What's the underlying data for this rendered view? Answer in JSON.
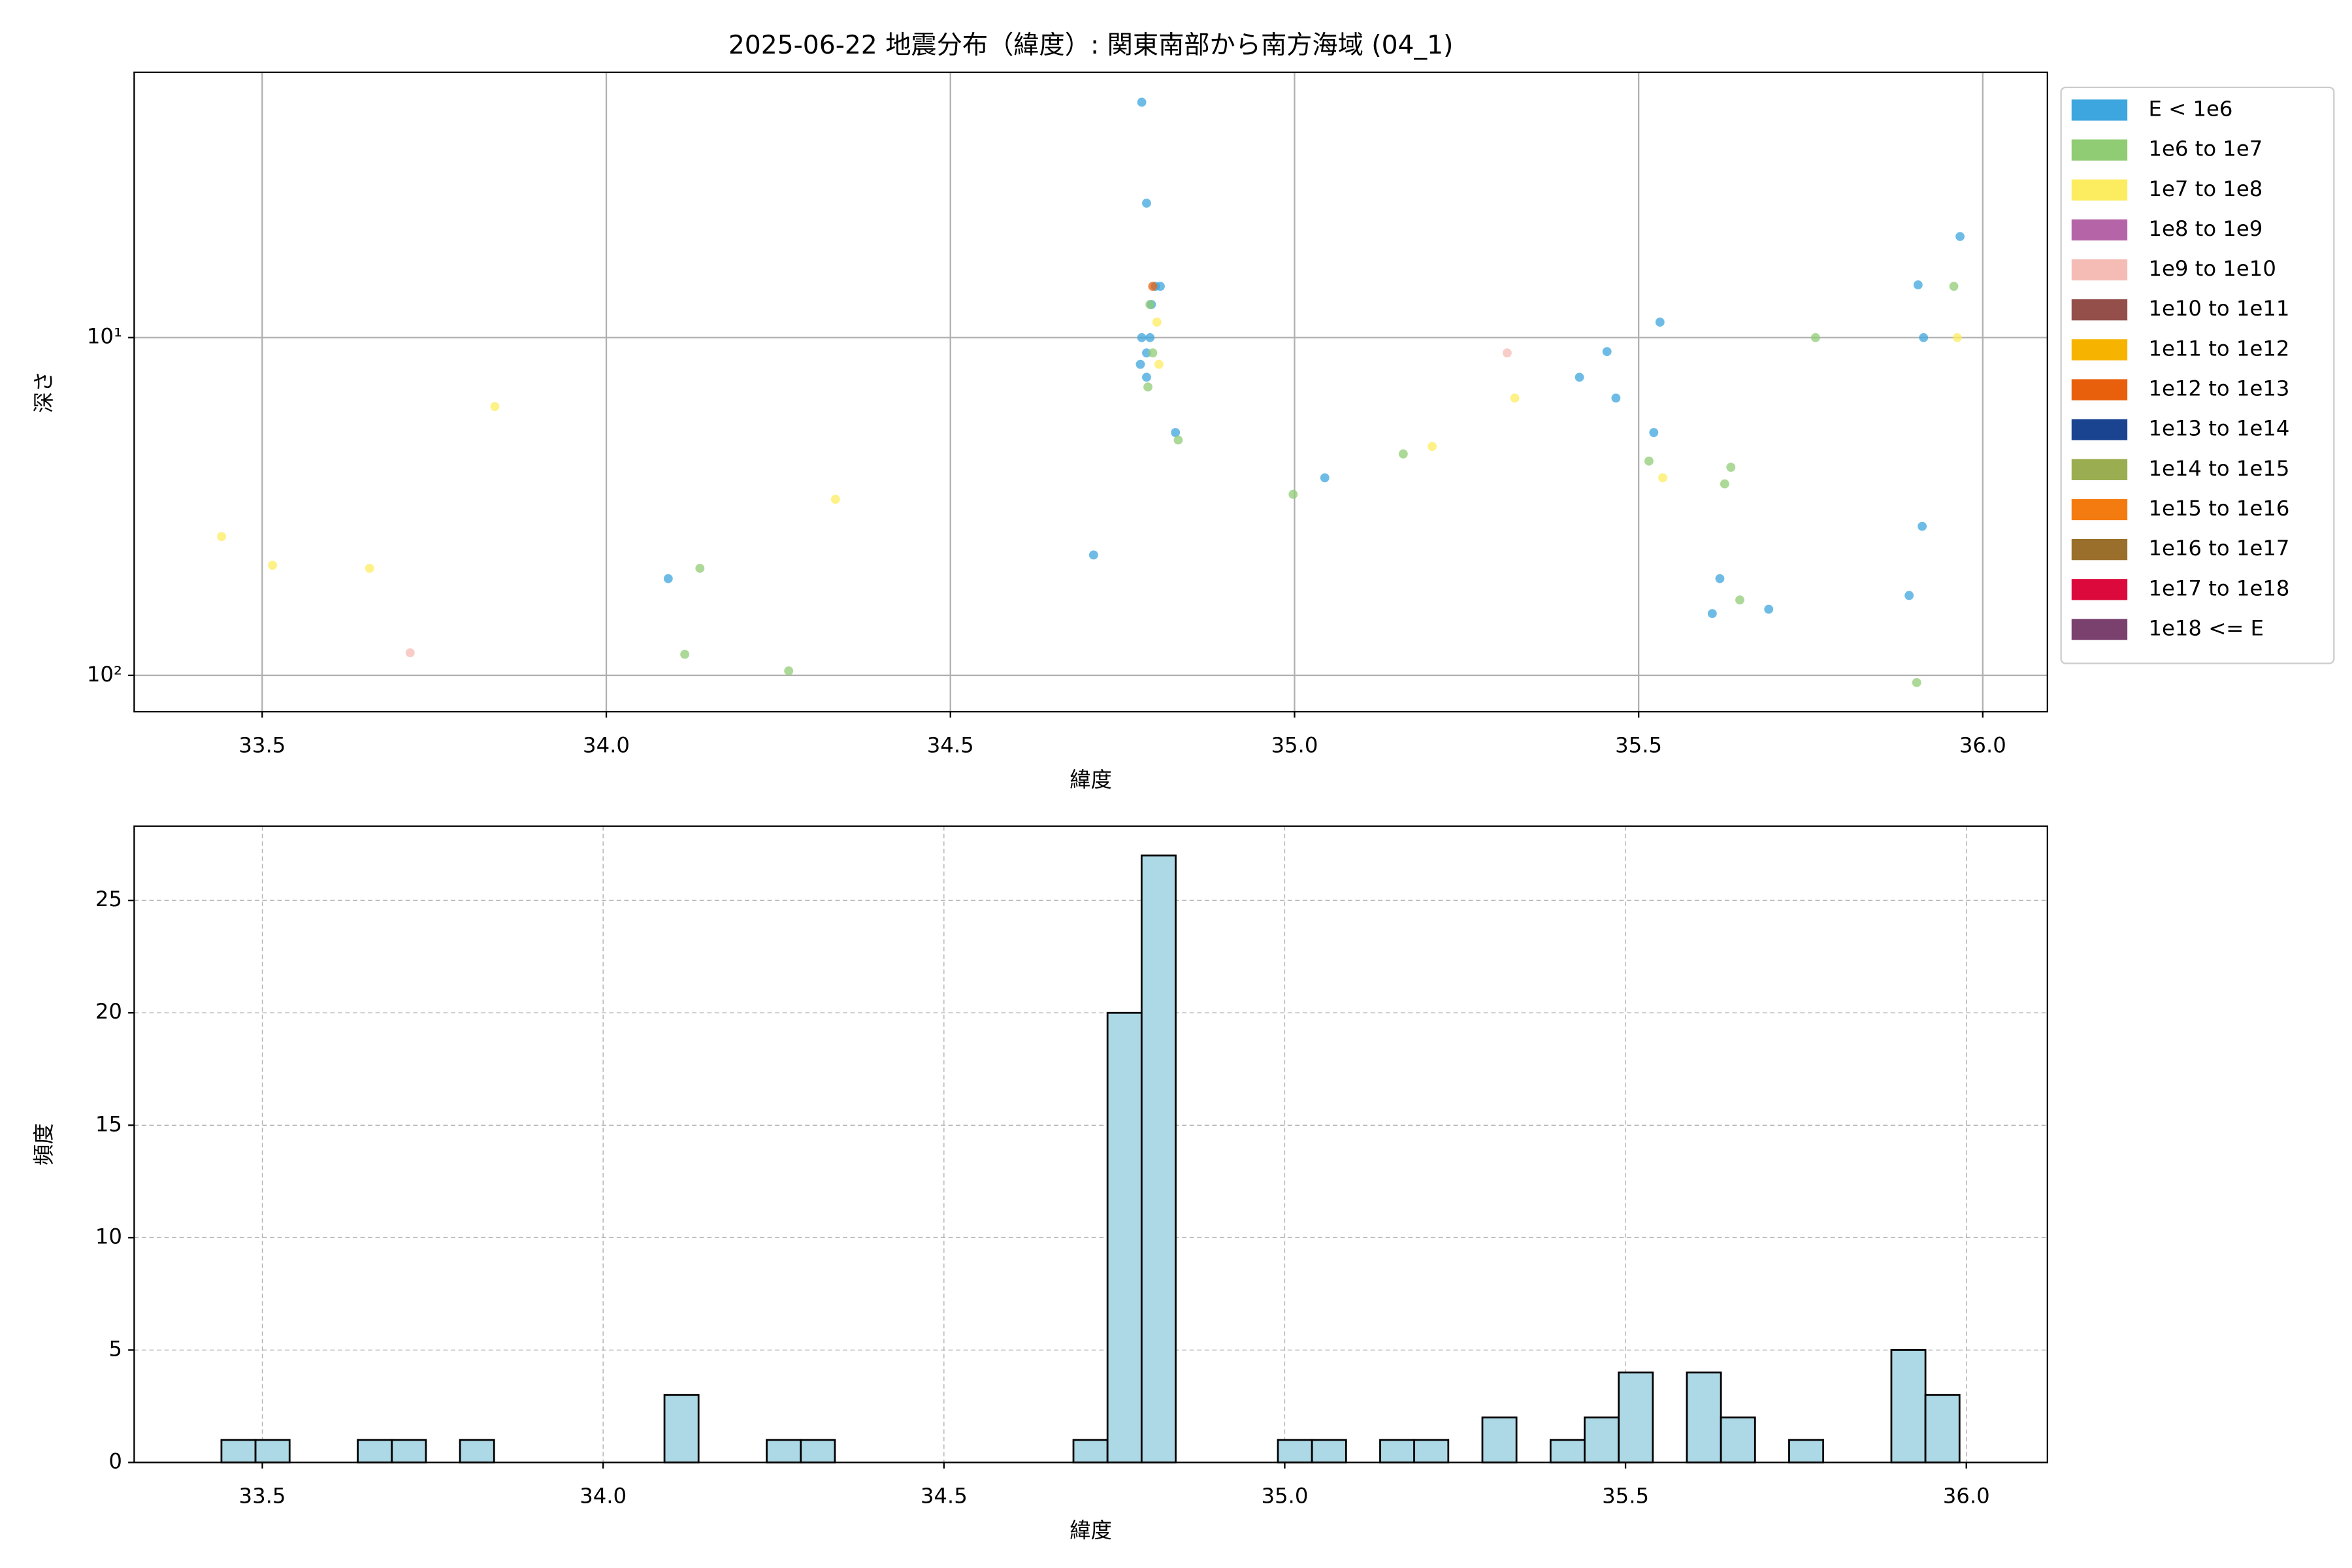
{
  "chart_data": [
    {
      "type": "scatter",
      "title": "2025-06-22 地震分布（緯度）: 関東南部から南方海域 (04_1)",
      "xlabel": "緯度",
      "ylabel": "深さ",
      "xlim": [
        33.314,
        36.094
      ],
      "xticks": [
        33.5,
        {
          "value": 34,
          "label": "34.0"
        },
        34.5,
        {
          "value": 35,
          "label": "35.0"
        },
        35.5,
        {
          "value": 36,
          "label": "36.0"
        }
      ],
      "ylim": [
        1.64,
        128
      ],
      "y_log": true,
      "y_inverted": true,
      "yticks": [
        {
          "value": 10,
          "label": "10¹"
        },
        {
          "value": 100,
          "label": "10²"
        }
      ],
      "grid": true,
      "grid_style": "solid",
      "legend": "outside upper right",
      "series": [
        {
          "name": "E < 1e6",
          "color": "#3ea6de",
          "x": [
            34.778,
            34.785,
            34.798,
            34.805,
            34.792,
            34.778,
            34.79,
            34.785,
            34.776,
            34.785,
            34.708,
            34.827,
            34.09,
            35.044,
            35.414,
            35.454,
            35.467,
            35.531,
            35.522,
            35.618,
            35.607,
            35.689,
            35.893,
            35.906,
            35.914,
            35.967,
            35.912
          ],
          "values": [
            2.01,
            4.0,
            7.05,
            7.05,
            7.98,
            10,
            10,
            11.1,
            12.0,
            13.1,
            44,
            19.1,
            51.7,
            26,
            13.1,
            11.0,
            15.1,
            9.0,
            19.1,
            51.7,
            65.6,
            63.7,
            58,
            6.98,
            10,
            5.02,
            36.2
          ]
        },
        {
          "name": "1e6 to 1e7",
          "color": "#90cc74",
          "x": [
            34.787,
            34.794,
            34.79,
            34.831,
            34.136,
            34.114,
            34.265,
            34.998,
            35.158,
            35.515,
            35.634,
            35.625,
            35.647,
            35.757,
            35.958,
            35.904
          ],
          "values": [
            14.0,
            11.1,
            7.98,
            20.1,
            48.2,
            86.6,
            97,
            29.1,
            22.1,
            23.2,
            24.2,
            27.1,
            59.8,
            10,
            7.05,
            105
          ]
        },
        {
          "name": "1e7 to 1e8",
          "color": "#fcec60",
          "x": [
            33.441,
            33.515,
            33.656,
            33.838,
            34.333,
            34.8,
            34.803,
            35.2,
            35.32,
            35.535,
            35.963
          ],
          "values": [
            38.8,
            47.2,
            48.2,
            16.0,
            30.1,
            9.0,
            12.0,
            21,
            15.1,
            26,
            10
          ]
        },
        {
          "name": "1e8 to 1e9",
          "color": "#b565a7",
          "x": [],
          "values": []
        },
        {
          "name": "1e9 to 1e10",
          "color": "#f5bcb6",
          "x": [
            33.715,
            35.309
          ],
          "values": [
            85.7,
            11.1
          ]
        },
        {
          "name": "1e10 to 1e11",
          "color": "#944f4b",
          "x": [],
          "values": []
        },
        {
          "name": "1e11 to 1e12",
          "color": "#f6b400",
          "x": [],
          "values": []
        },
        {
          "name": "1e12 to 1e13",
          "color": "#e8600c",
          "x": [
            34.794
          ],
          "values": [
            7.05
          ]
        },
        {
          "name": "1e13 to 1e14",
          "color": "#1b4490",
          "x": [],
          "values": []
        },
        {
          "name": "1e14 to 1e15",
          "color": "#9aad51",
          "x": [],
          "values": []
        },
        {
          "name": "1e15 to 1e16",
          "color": "#f47b10",
          "x": [],
          "values": []
        },
        {
          "name": "1e16 to 1e17",
          "color": "#9a6e2b",
          "x": [],
          "values": []
        },
        {
          "name": "1e17 to 1e18",
          "color": "#dc0a3c",
          "x": [],
          "values": []
        },
        {
          "name": "1e18 <= E",
          "color": "#7a406e",
          "x": [],
          "values": []
        }
      ]
    },
    {
      "type": "histogram",
      "xlabel": "緯度",
      "ylabel": "頻度",
      "xlim": [
        33.312,
        36.119
      ],
      "xticks": [
        33.5,
        {
          "value": 34,
          "label": "34.0"
        },
        34.5,
        {
          "value": 35,
          "label": "35.0"
        },
        35.5,
        {
          "value": 36,
          "label": "36.0"
        }
      ],
      "ylim": [
        0,
        28.3
      ],
      "yticks": [
        0,
        5,
        10,
        15,
        20,
        25
      ],
      "grid": true,
      "grid_style": "dashed",
      "color": "#add8e6",
      "bins": [
        33.44,
        33.49,
        33.54,
        33.59,
        33.64,
        33.69,
        33.74,
        33.79,
        33.84,
        33.89,
        33.94,
        33.99,
        34.04,
        34.09,
        34.14,
        34.19,
        34.24,
        34.29,
        34.34,
        34.39,
        34.44,
        34.49,
        34.54,
        34.59,
        34.64,
        34.69,
        34.74,
        34.79,
        34.84,
        34.89,
        34.94,
        34.99,
        35.04,
        35.09,
        35.14,
        35.19,
        35.24,
        35.29,
        35.34,
        35.39,
        35.44,
        35.49,
        35.54,
        35.59,
        35.64,
        35.69,
        35.74,
        35.79,
        35.84,
        35.89,
        35.94,
        35.99
      ],
      "values": [
        1,
        1,
        0,
        0,
        1,
        1,
        0,
        1,
        0,
        0,
        0,
        0,
        0,
        3,
        0,
        0,
        1,
        1,
        0,
        0,
        0,
        0,
        0,
        0,
        0,
        1,
        20,
        27,
        0,
        0,
        0,
        1,
        1,
        0,
        1,
        1,
        0,
        2,
        0,
        1,
        2,
        4,
        0,
        4,
        2,
        0,
        1,
        0,
        0,
        5,
        3
      ]
    }
  ]
}
